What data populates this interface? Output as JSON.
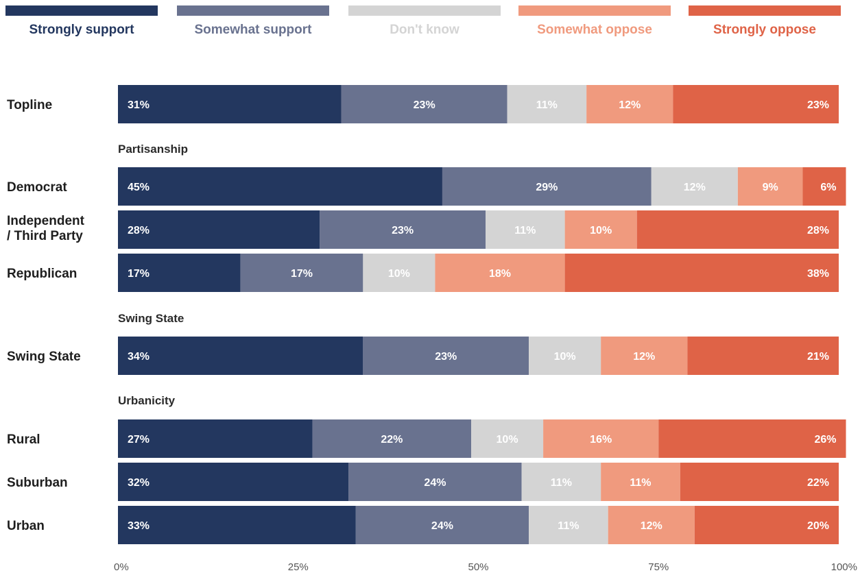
{
  "chart_data": {
    "type": "bar",
    "orientation": "horizontal",
    "stacked": true,
    "xlim": [
      0,
      100
    ],
    "x_ticks": [
      "0%",
      "25%",
      "50%",
      "75%",
      "100%"
    ],
    "legend_position": "top",
    "series": [
      {
        "name": "Strongly support",
        "color": "#23375f",
        "label_color": "#ffffff"
      },
      {
        "name": "Somewhat support",
        "color": "#69728f",
        "label_color": "#ffffff"
      },
      {
        "name": "Don't know",
        "color": "#d4d4d4",
        "label_color": "#ffffff"
      },
      {
        "name": "Somewhat oppose",
        "color": "#f09a7e",
        "label_color": "#ffffff"
      },
      {
        "name": "Strongly oppose",
        "color": "#df6347",
        "label_color": "#ffffff"
      }
    ],
    "legend_text_colors": [
      "#23375f",
      "#69728f",
      "#d4d4d4",
      "#f09a7e",
      "#df6347"
    ],
    "groups": [
      {
        "label": "",
        "rows": [
          {
            "label": [
              "Topline"
            ],
            "values": [
              31,
              23,
              11,
              12,
              23
            ]
          }
        ]
      },
      {
        "label": "Partisanship",
        "rows": [
          {
            "label": [
              "Democrat"
            ],
            "values": [
              45,
              29,
              12,
              9,
              6
            ]
          },
          {
            "label": [
              "Independent",
              "/ Third Party"
            ],
            "values": [
              28,
              23,
              11,
              10,
              28
            ]
          },
          {
            "label": [
              "Republican"
            ],
            "values": [
              17,
              17,
              10,
              18,
              38
            ]
          }
        ]
      },
      {
        "label": "Swing State",
        "rows": [
          {
            "label": [
              "Swing State"
            ],
            "values": [
              34,
              23,
              10,
              12,
              21
            ]
          }
        ]
      },
      {
        "label": "Urbanicity",
        "rows": [
          {
            "label": [
              "Rural"
            ],
            "values": [
              27,
              22,
              10,
              16,
              26
            ]
          },
          {
            "label": [
              "Suburban"
            ],
            "values": [
              32,
              24,
              11,
              11,
              22
            ]
          },
          {
            "label": [
              "Urban"
            ],
            "values": [
              33,
              24,
              11,
              12,
              20
            ]
          }
        ]
      }
    ]
  }
}
